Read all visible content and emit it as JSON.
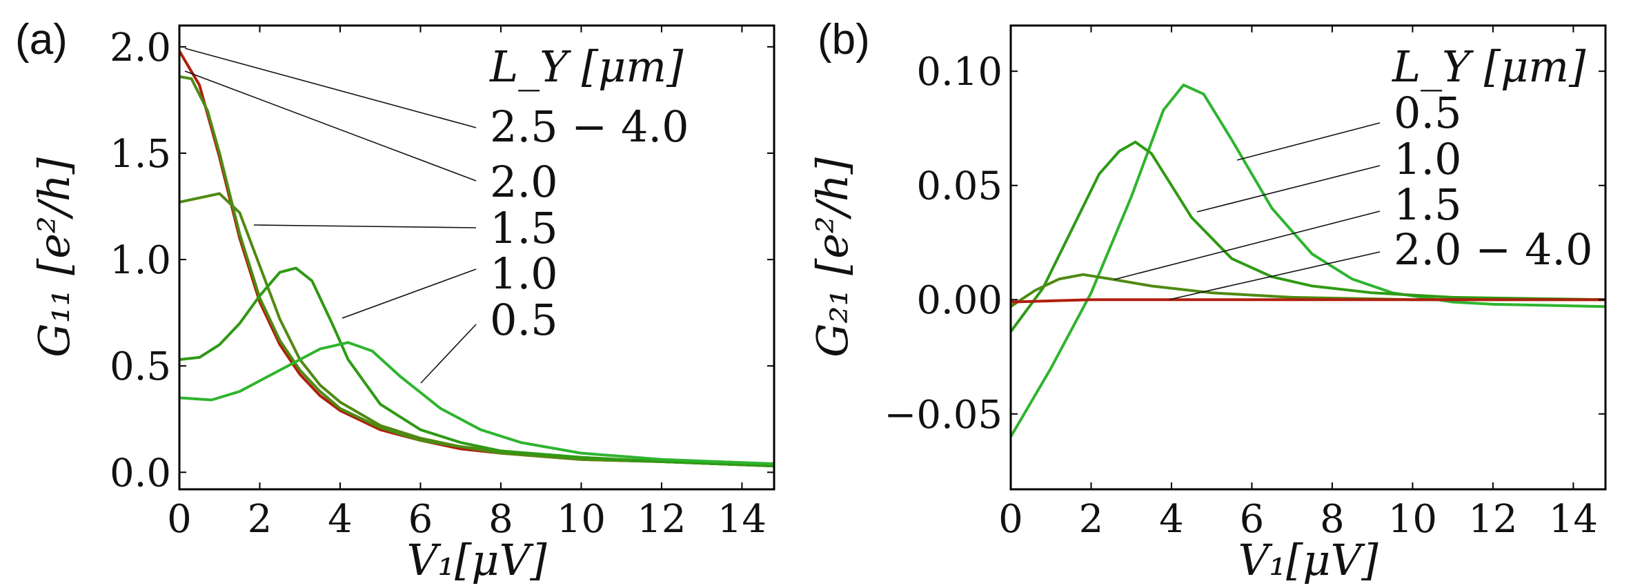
{
  "colors": {
    "red": "#b01e0e",
    "dark_green": "#4f8a12",
    "mid_green": "#2f9a14",
    "light_green": "#2fb42f",
    "text": "#111111"
  },
  "chart_data": [
    {
      "type": "line",
      "panel_label": "(a)",
      "xlabel": "V₁[μV]",
      "ylabel": "G₁₁ [e²/h]",
      "xlim": [
        0,
        14.8
      ],
      "ylim": [
        -0.08,
        2.1
      ],
      "xticks": [
        0,
        2,
        4,
        6,
        8,
        10,
        12,
        14
      ],
      "xtick_labels": [
        "0",
        "2",
        "4",
        "6",
        "8",
        "10",
        "12",
        "14"
      ],
      "yticks": [
        0.0,
        0.5,
        1.0,
        1.5,
        2.0
      ],
      "ytick_labels": [
        "0.0",
        "0.5",
        "1.0",
        "1.5",
        "2.0"
      ],
      "legend_title": "L_Y [μm]",
      "series": [
        {
          "name": "2.5 − 4.0",
          "color": "red",
          "x": [
            0,
            0.5,
            1,
            1.5,
            2,
            2.5,
            3,
            3.5,
            4,
            5,
            6,
            7,
            8,
            10,
            12,
            14.8
          ],
          "y": [
            1.98,
            1.82,
            1.48,
            1.1,
            0.8,
            0.6,
            0.46,
            0.36,
            0.29,
            0.2,
            0.15,
            0.11,
            0.09,
            0.06,
            0.05,
            0.03
          ]
        },
        {
          "name": "2.0",
          "color": "dark_green",
          "x": [
            0,
            0.3,
            0.7,
            1,
            1.5,
            2,
            2.5,
            3,
            3.5,
            4,
            5,
            6,
            7,
            8,
            10,
            12,
            14.8
          ],
          "y": [
            1.86,
            1.85,
            1.7,
            1.5,
            1.12,
            0.82,
            0.62,
            0.48,
            0.38,
            0.3,
            0.21,
            0.15,
            0.12,
            0.09,
            0.06,
            0.05,
            0.03
          ]
        },
        {
          "name": "1.5",
          "color": "dark_green",
          "x": [
            0,
            0.5,
            1,
            1.5,
            2,
            2.5,
            3,
            3.5,
            4,
            5,
            6,
            7,
            8,
            10,
            12,
            14.8
          ],
          "y": [
            1.27,
            1.29,
            1.31,
            1.22,
            0.97,
            0.72,
            0.53,
            0.41,
            0.33,
            0.22,
            0.16,
            0.12,
            0.1,
            0.07,
            0.05,
            0.03
          ]
        },
        {
          "name": "1.0",
          "color": "mid_green",
          "x": [
            0,
            0.5,
            1,
            1.5,
            2,
            2.5,
            2.9,
            3.3,
            3.8,
            4.2,
            5,
            6,
            7,
            8,
            10,
            12,
            14.8
          ],
          "y": [
            0.53,
            0.54,
            0.6,
            0.7,
            0.83,
            0.94,
            0.96,
            0.9,
            0.7,
            0.53,
            0.32,
            0.2,
            0.14,
            0.1,
            0.07,
            0.05,
            0.03
          ]
        },
        {
          "name": "0.5",
          "color": "light_green",
          "x": [
            0,
            0.8,
            1.5,
            2.5,
            3.5,
            4.2,
            4.8,
            5.5,
            6.5,
            7.5,
            8.5,
            10,
            12,
            14.8
          ],
          "y": [
            0.35,
            0.34,
            0.38,
            0.48,
            0.58,
            0.61,
            0.57,
            0.45,
            0.3,
            0.2,
            0.14,
            0.09,
            0.06,
            0.04
          ]
        }
      ]
    },
    {
      "type": "line",
      "panel_label": "(b)",
      "xlabel": "V₁[μV]",
      "ylabel": "G₂₁ [e²/h]",
      "xlim": [
        0,
        14.8
      ],
      "ylim": [
        -0.083,
        0.12
      ],
      "xticks": [
        0,
        2,
        4,
        6,
        8,
        10,
        12,
        14
      ],
      "xtick_labels": [
        "0",
        "2",
        "4",
        "6",
        "8",
        "10",
        "12",
        "14"
      ],
      "yticks": [
        -0.05,
        0.0,
        0.05,
        0.1
      ],
      "ytick_labels": [
        "−0.05",
        "0.00",
        "0.05",
        "0.10"
      ],
      "legend_title": "L_Y [μm]",
      "series": [
        {
          "name": "0.5",
          "color": "light_green",
          "x": [
            0,
            1,
            2,
            3,
            3.8,
            4.3,
            4.8,
            5.5,
            6.5,
            7.5,
            8.5,
            9.5,
            11,
            12,
            14.8
          ],
          "y": [
            -0.06,
            -0.03,
            0.003,
            0.045,
            0.083,
            0.094,
            0.09,
            0.07,
            0.04,
            0.02,
            0.009,
            0.003,
            -0.001,
            -0.002,
            -0.003
          ]
        },
        {
          "name": "1.0",
          "color": "mid_green",
          "x": [
            0,
            0.8,
            1.5,
            2.2,
            2.7,
            3.1,
            3.5,
            4,
            4.5,
            5.5,
            6.5,
            7.5,
            9,
            11,
            14.8
          ],
          "y": [
            -0.014,
            0.005,
            0.03,
            0.055,
            0.065,
            0.069,
            0.064,
            0.05,
            0.036,
            0.018,
            0.01,
            0.006,
            0.003,
            0.001,
            0.0
          ]
        },
        {
          "name": "1.5",
          "color": "dark_green",
          "x": [
            0,
            0.6,
            1.2,
            1.8,
            2.5,
            3.5,
            5,
            7,
            10,
            14.8
          ],
          "y": [
            -0.003,
            0.004,
            0.009,
            0.011,
            0.009,
            0.006,
            0.003,
            0.001,
            0.0,
            0.0
          ]
        },
        {
          "name": "2.0 − 4.0",
          "color": "red",
          "x": [
            0,
            2,
            4,
            8,
            14.8
          ],
          "y": [
            -0.001,
            0.0,
            0.0,
            0.0,
            0.0
          ]
        }
      ]
    }
  ]
}
